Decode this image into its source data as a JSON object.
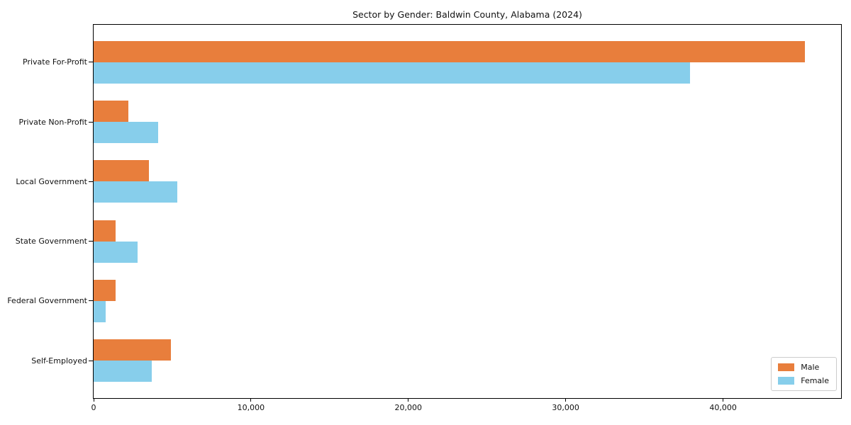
{
  "chart_data": {
    "type": "bar",
    "orientation": "horizontal",
    "title": "Sector by Gender: Baldwin County, Alabama (2024)",
    "categories": [
      "Private For-Profit",
      "Private Non-Profit",
      "Local Government",
      "State Government",
      "Federal Government",
      "Self-Employed"
    ],
    "series": [
      {
        "name": "Male",
        "color": "#E87E3C",
        "values": [
          45200,
          2200,
          3500,
          1400,
          1400,
          4900
        ]
      },
      {
        "name": "Female",
        "color": "#87CEEB",
        "values": [
          37900,
          4100,
          5300,
          2800,
          750,
          3700
        ]
      }
    ],
    "xlabel": "",
    "ylabel": "",
    "xlim": [
      0,
      47500
    ],
    "xticks": {
      "values": [
        0,
        10000,
        20000,
        30000,
        40000
      ],
      "labels": [
        "0",
        "10,000",
        "20,000",
        "30,000",
        "40,000"
      ]
    },
    "legend_position": "lower right",
    "grid": false,
    "background_color": "#ffffff",
    "spine_color": "#000000"
  }
}
